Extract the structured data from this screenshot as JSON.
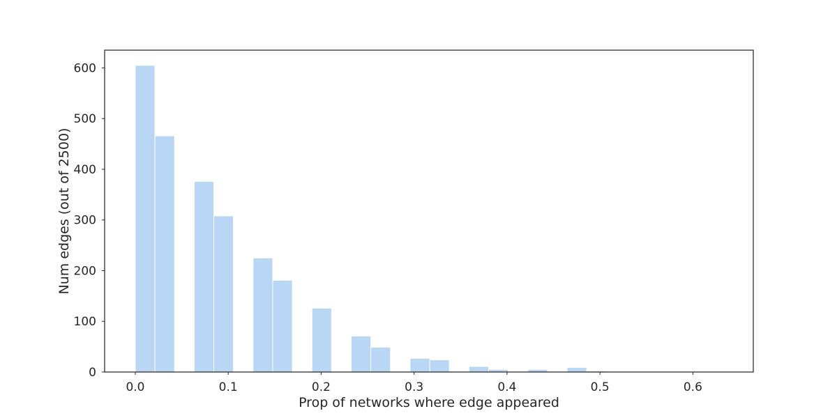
{
  "chart_data": {
    "type": "bar",
    "histogram": true,
    "xlabel": "Prop of networks where edge appeared",
    "ylabel": "Num edges (out of 2500)",
    "xlim": [
      -0.033,
      0.665
    ],
    "ylim": [
      0,
      635
    ],
    "xticks": [
      0.0,
      0.1,
      0.2,
      0.3,
      0.4,
      0.5,
      0.6
    ],
    "xtick_labels": [
      "0.0",
      "0.1",
      "0.2",
      "0.3",
      "0.4",
      "0.5",
      "0.6"
    ],
    "yticks": [
      0,
      100,
      200,
      300,
      400,
      500,
      600
    ],
    "ytick_labels": [
      "0",
      "100",
      "200",
      "300",
      "400",
      "500",
      "600"
    ],
    "bin_start": 0.0,
    "bin_width": 0.02112,
    "counts": [
      605,
      466,
      0,
      376,
      308,
      0,
      225,
      181,
      0,
      126,
      0,
      71,
      49,
      0,
      27,
      24,
      0,
      11,
      5,
      0,
      5,
      0,
      9,
      2,
      0,
      1,
      1,
      0,
      0,
      1
    ],
    "bar_color": "#b9d7f4",
    "grid": false,
    "legend": "none"
  }
}
